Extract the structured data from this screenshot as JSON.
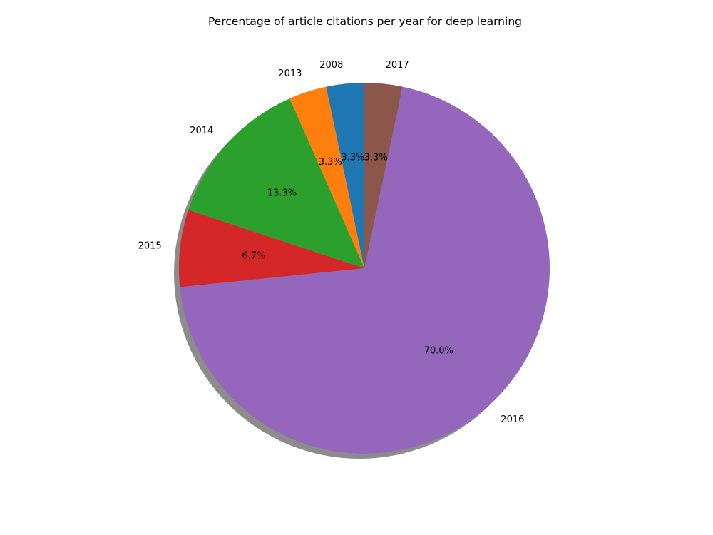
{
  "chart_data": {
    "type": "pie",
    "title": "Percentage of article citations per year for deep learning",
    "slices": [
      {
        "label": "2008",
        "value": 3.3,
        "pct_text": "3.3%",
        "color": "#1f77b4"
      },
      {
        "label": "2013",
        "value": 3.3,
        "pct_text": "3.3%",
        "color": "#ff7f0e"
      },
      {
        "label": "2014",
        "value": 13.3,
        "pct_text": "13.3%",
        "color": "#2ca02c"
      },
      {
        "label": "2015",
        "value": 6.7,
        "pct_text": "6.7%",
        "color": "#d62728"
      },
      {
        "label": "2016",
        "value": 70.0,
        "pct_text": "70.0%",
        "color": "#9467bd"
      },
      {
        "label": "2017",
        "value": 3.3,
        "pct_text": "3.3%",
        "color": "#8c564b"
      }
    ],
    "start_angle_deg": 90,
    "direction": "counterclockwise",
    "shadow": true
  }
}
